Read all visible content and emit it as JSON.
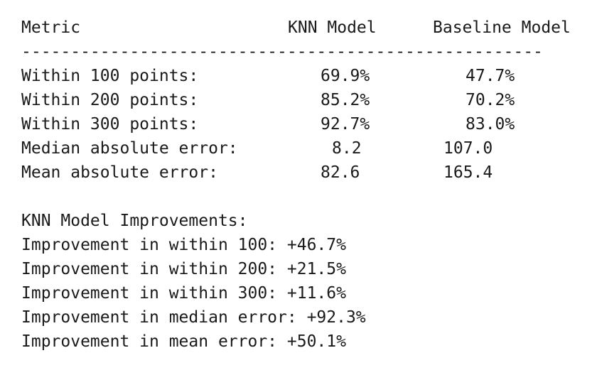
{
  "table": {
    "header": {
      "metric": "Metric",
      "knn": "KNN Model",
      "baseline": "Baseline Model"
    },
    "divider": "-----------------------------------------------------",
    "rows": [
      {
        "metric": "Within 100 points:",
        "knn": "69.9%",
        "baseline": "47.7%"
      },
      {
        "metric": "Within 200 points:",
        "knn": "85.2%",
        "baseline": "70.2%"
      },
      {
        "metric": "Within 300 points:",
        "knn": "92.7%",
        "baseline": "83.0%"
      },
      {
        "metric": "Median absolute error:",
        "knn": "8.2",
        "baseline": "107.0"
      },
      {
        "metric": "Mean absolute error:",
        "knn": "82.6",
        "baseline": "165.4"
      }
    ]
  },
  "improvements": {
    "title": "KNN Model Improvements:",
    "lines": [
      "Improvement in within 100: +46.7%",
      "Improvement in within 200: +21.5%",
      "Improvement in within 300: +11.6%",
      "Improvement in median error: +92.3%",
      "Improvement in mean error: +50.1%"
    ]
  }
}
